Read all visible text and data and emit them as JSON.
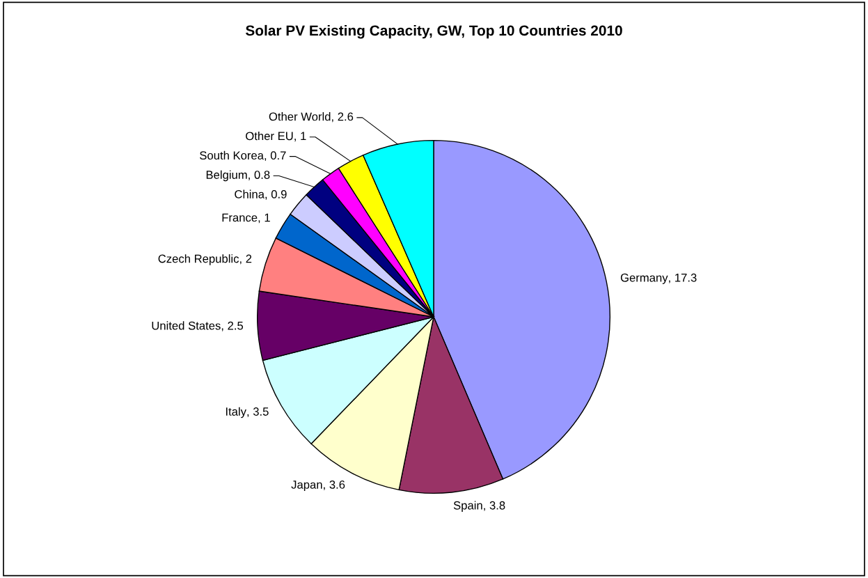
{
  "chart_data": {
    "type": "pie",
    "title": "Solar PV Existing Capacity, GW, Top 10 Countries 2010",
    "categories": [
      "Germany",
      "Spain",
      "Japan",
      "Italy",
      "United States",
      "Czech Republic",
      "France",
      "China",
      "Belgium",
      "South Korea",
      "Other EU",
      "Other World"
    ],
    "values": [
      17.3,
      3.8,
      3.6,
      3.5,
      2.5,
      2,
      1,
      0.9,
      0.8,
      0.7,
      1,
      2.6
    ],
    "colors": [
      "#9999ff",
      "#993366",
      "#ffffcc",
      "#ccffff",
      "#660066",
      "#ff8080",
      "#0066cc",
      "#ccccff",
      "#000080",
      "#ff00ff",
      "#ffff00",
      "#00ffff"
    ],
    "value_labels": [
      ", 17.3",
      ", 3.8",
      ", 3.6",
      ", 3.5",
      ", 2.5",
      ", 2",
      ", 1",
      ", 0.9",
      ", 0.8",
      ", 0.7",
      ", 1",
      ", 2.6"
    ],
    "legend": false
  }
}
